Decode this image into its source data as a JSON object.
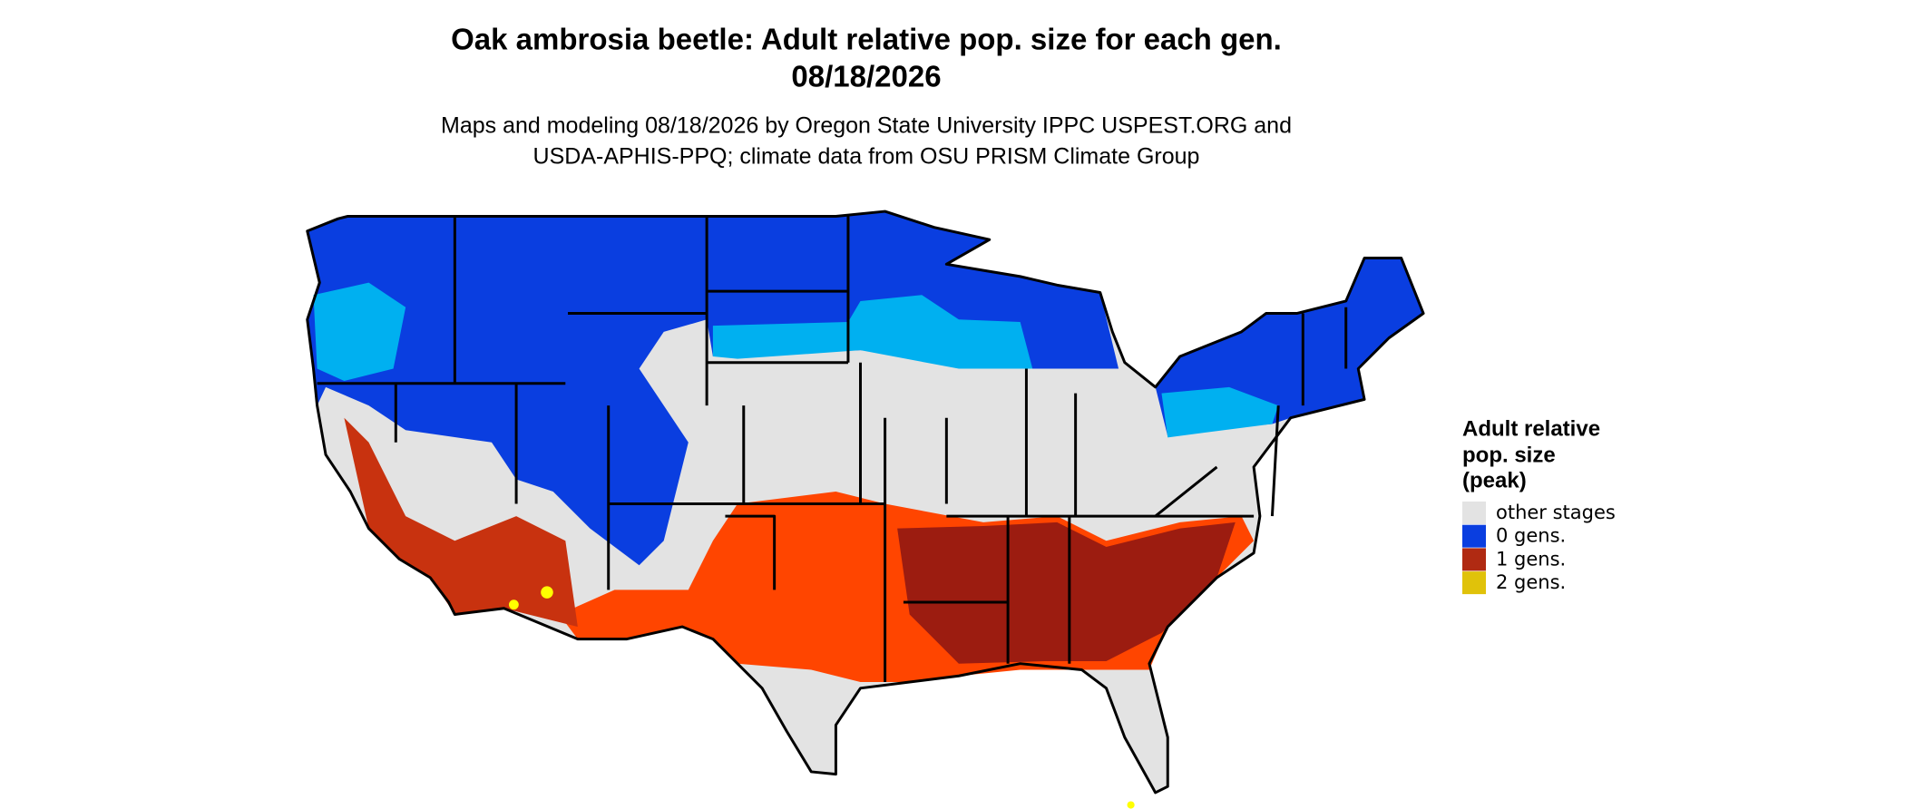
{
  "title": [
    "Oak ambrosia beetle: Adult relative pop. size for each gen.",
    "08/18/2026"
  ],
  "subtitle": [
    "Maps and modeling 08/18/2026 by Oregon State University IPPC USPEST.ORG and",
    "USDA-APHIS-PPQ; climate data from OSU PRISM Climate Group"
  ],
  "legend": {
    "title": [
      "Adult relative",
      "pop. size",
      "(peak)"
    ],
    "items": [
      {
        "label": "other stages",
        "color": "#e3e3e3"
      },
      {
        "label": "0 gens.",
        "color": "#0a3ee0"
      },
      {
        "label": "1 gens.",
        "color": "#b02a12"
      },
      {
        "label": "2 gens.",
        "color": "#e0c20a"
      }
    ]
  }
}
